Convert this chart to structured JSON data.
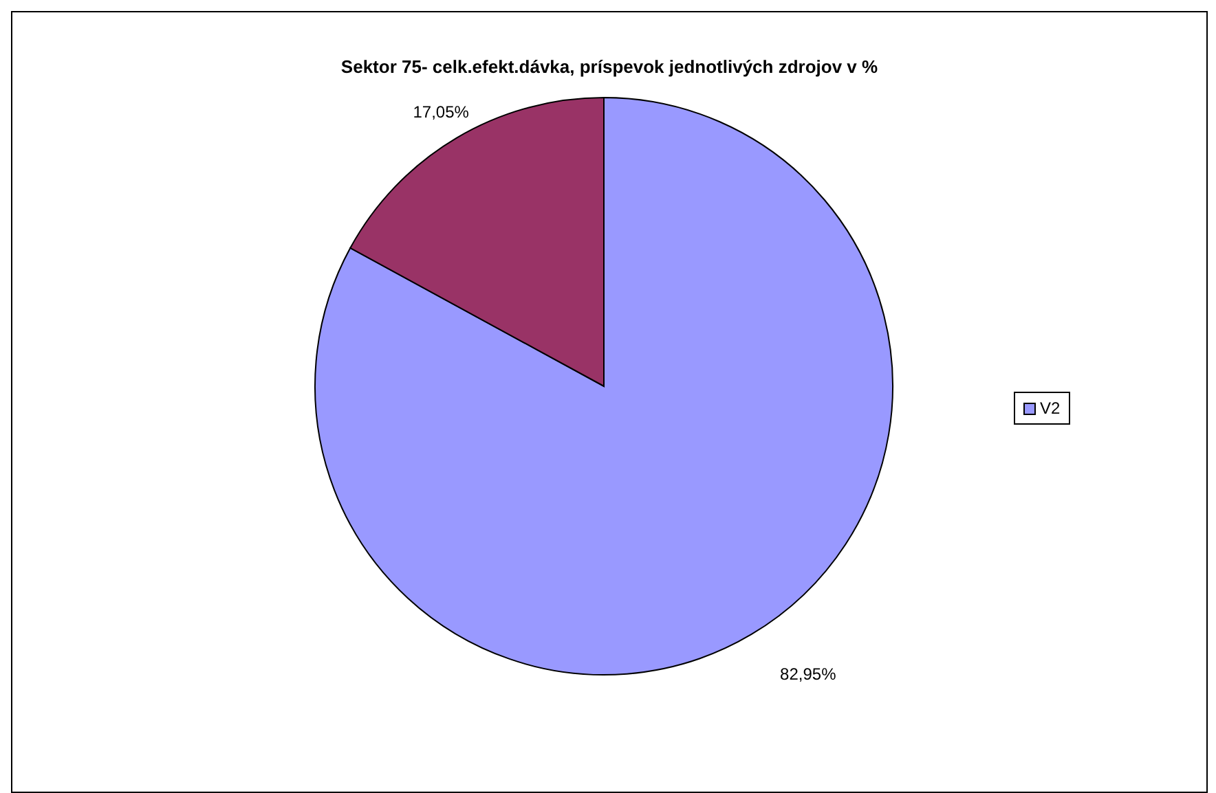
{
  "chart_data": {
    "type": "pie",
    "title": "Sektor 75- celk.efekt.dávka, príspevok jednotlivých zdrojov v %",
    "categories": [
      "V2",
      null
    ],
    "values": [
      82.95,
      17.05
    ],
    "colors": [
      "#9999ff",
      "#993366"
    ],
    "value_labels": [
      "82,95%",
      "17,05%"
    ],
    "legend": "right"
  }
}
